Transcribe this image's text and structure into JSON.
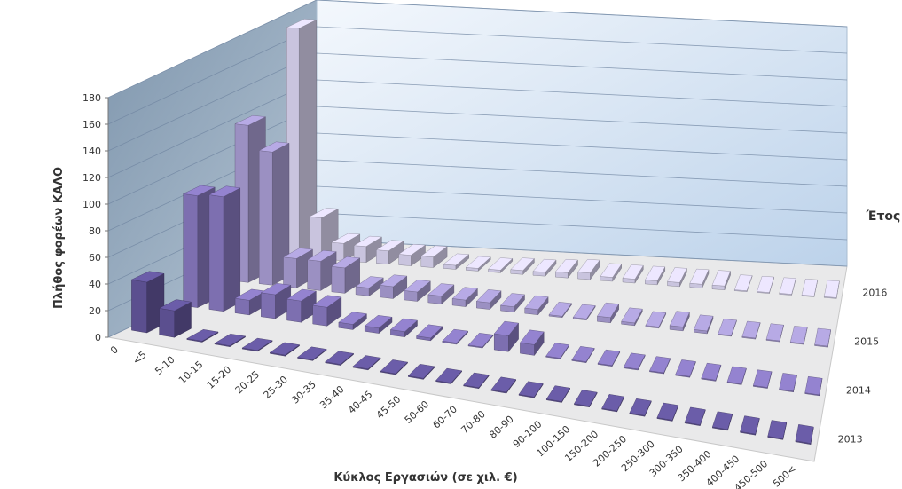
{
  "chart_data": {
    "type": "bar",
    "variant": "3d-column",
    "xlabel": "Κύκλος Εργασιών (σε χιλ. €)",
    "ylabel": "Πλήθος  φορέων ΚΑΛΟ",
    "zlabel": "Έτος",
    "ylim": [
      0,
      180
    ],
    "yticks": [
      0,
      20,
      40,
      60,
      80,
      100,
      120,
      140,
      160,
      180
    ],
    "grid": true,
    "categories": [
      "0",
      "<5",
      "5-10",
      "10-15",
      "15-20",
      "20-25",
      "25-30",
      "30-35",
      "35-40",
      "40-45",
      "45-50",
      "50-60",
      "60-70",
      "70-80",
      "80-90",
      "90-100",
      "100-150",
      "150-200",
      "200-250",
      "250-300",
      "300-350",
      "350-400",
      "400-450",
      "450-500",
      "500<"
    ],
    "series": [
      {
        "name": "2013",
        "color": "#5b4f8f",
        "values": [
          38,
          20,
          0,
          0,
          0,
          0,
          0,
          0,
          0,
          0,
          0,
          0,
          0,
          0,
          0,
          0,
          0,
          0,
          0,
          0,
          0,
          0,
          0,
          0,
          0
        ]
      },
      {
        "name": "2014",
        "color": "#7d6fb0",
        "values": [
          84,
          86,
          11,
          18,
          16,
          14,
          4,
          4,
          4,
          2,
          1,
          0,
          12,
          8,
          0,
          0,
          0,
          0,
          0,
          0,
          0,
          0,
          0,
          0,
          0
        ]
      },
      {
        "name": "2015",
        "color": "#9b90c2",
        "values": [
          118,
          100,
          22,
          22,
          19,
          6,
          9,
          7,
          6,
          5,
          5,
          4,
          4,
          1,
          1,
          4,
          2,
          1,
          3,
          2,
          0,
          0,
          0,
          0,
          0
        ]
      },
      {
        "name": "2016",
        "color": "#c9c4de",
        "values": [
          172,
          31,
          13,
          12,
          10,
          8,
          8,
          3,
          2,
          2,
          3,
          3,
          4,
          5,
          3,
          3,
          3,
          3,
          3,
          3,
          0,
          0,
          0,
          0,
          0
        ]
      }
    ]
  }
}
